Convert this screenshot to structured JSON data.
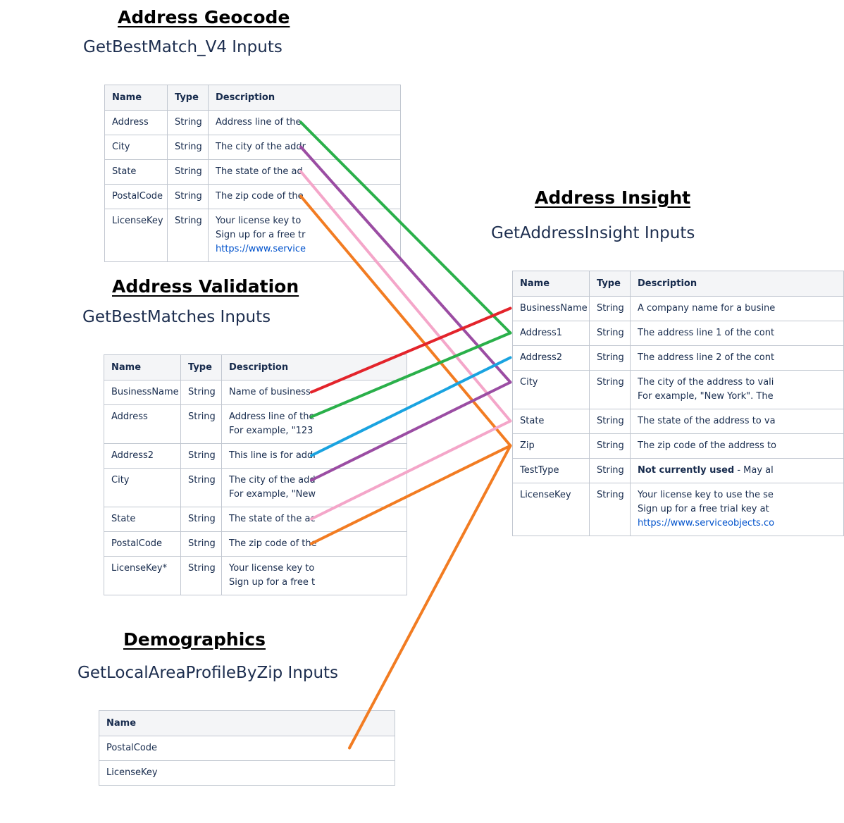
{
  "geocode": {
    "title": "Address Geocode",
    "subtitle": "GetBestMatch_V4 Inputs",
    "headers": [
      "Name",
      "Type",
      "Description"
    ],
    "rows": [
      {
        "name": "Address",
        "type": "String",
        "desc": [
          "Address line of the"
        ]
      },
      {
        "name": "City",
        "type": "String",
        "desc": [
          "The city of the addr"
        ]
      },
      {
        "name": "State",
        "type": "String",
        "desc": [
          "The state of the ad"
        ]
      },
      {
        "name": "PostalCode",
        "type": "String",
        "desc": [
          "The zip code of the"
        ]
      },
      {
        "name": "LicenseKey",
        "type": "String",
        "desc": [
          "Your license key to",
          "Sign up for a free tr",
          "https://www.service"
        ]
      }
    ]
  },
  "validation": {
    "title": "Address Validation",
    "subtitle": "GetBestMatches Inputs",
    "headers": [
      "Name",
      "Type",
      "Description"
    ],
    "rows": [
      {
        "name": "BusinessName",
        "type": "String",
        "desc": [
          "Name of business"
        ]
      },
      {
        "name": "Address",
        "type": "String",
        "desc": [
          "Address line of the",
          "For example, \"123"
        ]
      },
      {
        "name": "Address2",
        "type": "String",
        "desc": [
          "This line is for addr"
        ]
      },
      {
        "name": "City",
        "type": "String",
        "desc": [
          "The city of the add",
          "For example, \"New"
        ]
      },
      {
        "name": "State",
        "type": "String",
        "desc": [
          "The state of the ac"
        ]
      },
      {
        "name": "PostalCode",
        "type": "String",
        "desc": [
          "The zip code of the"
        ]
      },
      {
        "name": "LicenseKey*",
        "type": "String",
        "desc": [
          "Your license key to",
          "Sign up for a free t"
        ]
      }
    ]
  },
  "demographics": {
    "title": "Demographics",
    "subtitle": "GetLocalAreaProfileByZip Inputs",
    "headers": [
      "Name"
    ],
    "rows": [
      {
        "name": "PostalCode"
      },
      {
        "name": "LicenseKey"
      }
    ]
  },
  "insight": {
    "title": "Address Insight",
    "subtitle": "GetAddressInsight Inputs",
    "headers": [
      "Name",
      "Type",
      "Description"
    ],
    "rows": [
      {
        "name": "BusinessName",
        "type": "String",
        "desc": [
          "A company name for a busine"
        ]
      },
      {
        "name": "Address1",
        "type": "String",
        "desc": [
          "The address line 1 of the cont"
        ]
      },
      {
        "name": "Address2",
        "type": "String",
        "desc": [
          "The address line 2 of the cont"
        ]
      },
      {
        "name": "City",
        "type": "String",
        "desc": [
          "The city of the address to vali",
          "For example, \"New York\". The"
        ]
      },
      {
        "name": "State",
        "type": "String",
        "desc": [
          "The state of the address to va"
        ]
      },
      {
        "name": "Zip",
        "type": "String",
        "desc": [
          "The zip code of the address to"
        ]
      },
      {
        "name": "TestType",
        "type": "String",
        "desc_bold": "Not currently used",
        "desc": [
          " - May al"
        ]
      },
      {
        "name": "LicenseKey",
        "type": "String",
        "desc": [
          "Your license key to use the se",
          "Sign up for a free trial key at",
          "https://www.serviceobjects.co"
        ]
      }
    ]
  },
  "connectors": [
    {
      "from": "geocode.Address",
      "to": "insight.Address1",
      "color": "#2ab04a"
    },
    {
      "from": "geocode.City",
      "to": "insight.City",
      "color": "#9b4da3"
    },
    {
      "from": "geocode.State",
      "to": "insight.State",
      "color": "#f4a6c9"
    },
    {
      "from": "geocode.PostalCode",
      "to": "insight.Zip",
      "color": "#f27c22"
    },
    {
      "from": "validation.BusinessName",
      "to": "insight.BusinessName",
      "color": "#e3242b"
    },
    {
      "from": "validation.Address",
      "to": "insight.Address1",
      "color": "#2ab04a"
    },
    {
      "from": "validation.Address2",
      "to": "insight.Address2",
      "color": "#1aa3e0"
    },
    {
      "from": "validation.City",
      "to": "insight.City",
      "color": "#9b4da3"
    },
    {
      "from": "validation.State",
      "to": "insight.State",
      "color": "#f4a6c9"
    },
    {
      "from": "validation.PostalCode",
      "to": "insight.Zip",
      "color": "#f27c22"
    },
    {
      "from": "demographics.PostalCode",
      "to": "insight.Zip",
      "color": "#f27c22"
    }
  ]
}
